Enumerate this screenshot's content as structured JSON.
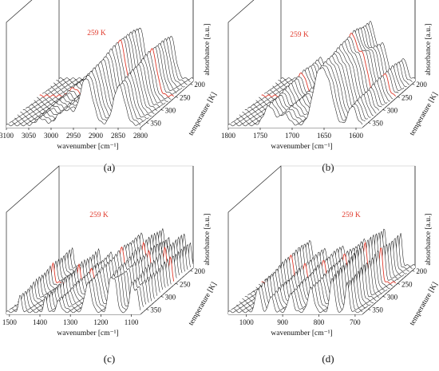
{
  "chart_data": [
    {
      "type": "line",
      "panel_label": "(a)",
      "xlabel": "wavenumber [cm⁻¹]",
      "ylabel": "absorbance [a.u.]",
      "zlabel": "temperature [K]",
      "x_ticks": [
        "3100",
        "3050",
        "3000",
        "2950",
        "2900",
        "2850",
        "2800"
      ],
      "z_ticks": [
        "200",
        "250",
        "300",
        "350"
      ],
      "xlim": [
        3100,
        2800
      ],
      "zlim": [
        190,
        370
      ],
      "annotation": "259 K",
      "traces": 20,
      "bands": [
        {
          "center": 3025,
          "width": 12,
          "height": 0.12
        },
        {
          "center": 2975,
          "width": 14,
          "height": 0.22
        },
        {
          "center": 2960,
          "width": 10,
          "height": 0.18
        },
        {
          "center": 2920,
          "width": 16,
          "height": 0.86
        },
        {
          "center": 2850,
          "width": 14,
          "height": 0.72
        }
      ]
    },
    {
      "type": "line",
      "panel_label": "(b)",
      "xlabel": "wavenumber [cm⁻¹]",
      "ylabel": "absorbance [a.u.]",
      "zlabel": "temperature [K]",
      "x_ticks": [
        "1800",
        "1750",
        "1700",
        "1650",
        "1600"
      ],
      "z_ticks": [
        "200",
        "250",
        "300",
        "350"
      ],
      "xlim": [
        1800,
        1590
      ],
      "zlim": [
        190,
        370
      ],
      "annotation": "259 K",
      "traces": 20,
      "bands": [
        {
          "center": 1738,
          "width": 9,
          "height": 0.35
        },
        {
          "center": 1710,
          "width": 8,
          "height": 0.2
        },
        {
          "center": 1660,
          "width": 11,
          "height": 0.95
        },
        {
          "center": 1640,
          "width": 9,
          "height": 0.55
        },
        {
          "center": 1608,
          "width": 7,
          "height": 0.35
        }
      ]
    },
    {
      "type": "line",
      "panel_label": "(c)",
      "xlabel": "wavenumber [cm⁻¹]",
      "ylabel": "absorbance [a.u.]",
      "zlabel": "temperature [K]",
      "x_ticks": [
        "1500",
        "1400",
        "1300",
        "1200",
        "1100"
      ],
      "z_ticks": [
        "200",
        "250",
        "300",
        "350"
      ],
      "xlim": [
        1510,
        1070
      ],
      "zlim": [
        190,
        370
      ],
      "annotation": "259 K",
      "traces": 20,
      "bands": [
        {
          "center": 1467,
          "width": 6,
          "height": 0.3
        },
        {
          "center": 1380,
          "width": 6,
          "height": 0.28
        },
        {
          "center": 1340,
          "width": 8,
          "height": 0.22
        },
        {
          "center": 1240,
          "width": 12,
          "height": 0.55
        },
        {
          "center": 1170,
          "width": 9,
          "height": 0.65
        },
        {
          "center": 1150,
          "width": 7,
          "height": 0.5
        },
        {
          "center": 1100,
          "width": 8,
          "height": 0.55
        },
        {
          "center": 1080,
          "width": 6,
          "height": 0.4
        }
      ]
    },
    {
      "type": "line",
      "panel_label": "(d)",
      "xlabel": "wavenumber [cm⁻¹]",
      "ylabel": "absorbance [a.u.]",
      "zlabel": "temperature [K]",
      "x_ticks": [
        "1000",
        "900",
        "800",
        "700"
      ],
      "z_ticks": [
        "200",
        "250",
        "300",
        "350"
      ],
      "xlim": [
        1050,
        680
      ],
      "zlim": [
        190,
        370
      ],
      "annotation": "259 K",
      "traces": 20,
      "bands": [
        {
          "center": 970,
          "width": 8,
          "height": 0.45
        },
        {
          "center": 930,
          "width": 7,
          "height": 0.3
        },
        {
          "center": 880,
          "width": 8,
          "height": 0.35
        },
        {
          "center": 820,
          "width": 9,
          "height": 0.45
        },
        {
          "center": 765,
          "width": 7,
          "height": 0.65
        },
        {
          "center": 720,
          "width": 6,
          "height": 0.55
        }
      ]
    }
  ]
}
